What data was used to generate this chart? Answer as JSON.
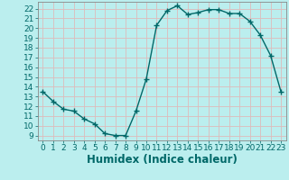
{
  "x": [
    0,
    1,
    2,
    3,
    4,
    5,
    6,
    7,
    8,
    9,
    10,
    11,
    12,
    13,
    14,
    15,
    16,
    17,
    18,
    19,
    20,
    21,
    22,
    23
  ],
  "y": [
    13.5,
    12.5,
    11.7,
    11.5,
    10.7,
    10.2,
    9.2,
    9.0,
    9.0,
    11.5,
    14.8,
    20.3,
    21.8,
    22.3,
    21.4,
    21.6,
    21.9,
    21.9,
    21.5,
    21.5,
    20.7,
    19.3,
    17.2,
    13.5
  ],
  "line_color": "#006868",
  "marker": "+",
  "marker_size": 4,
  "marker_linewidth": 1.0,
  "xlabel": "Humidex (Indice chaleur)",
  "xlim": [
    -0.5,
    23.5
  ],
  "ylim": [
    8.5,
    22.7
  ],
  "yticks": [
    9,
    10,
    11,
    12,
    13,
    14,
    15,
    16,
    17,
    18,
    19,
    20,
    21,
    22
  ],
  "xticks": [
    0,
    1,
    2,
    3,
    4,
    5,
    6,
    7,
    8,
    9,
    10,
    11,
    12,
    13,
    14,
    15,
    16,
    17,
    18,
    19,
    20,
    21,
    22,
    23
  ],
  "bg_color": "#bbeeee",
  "grid_color": "#ddbbbb",
  "tick_fontsize": 6.5,
  "xlabel_fontsize": 8.5,
  "linewidth": 1.0
}
